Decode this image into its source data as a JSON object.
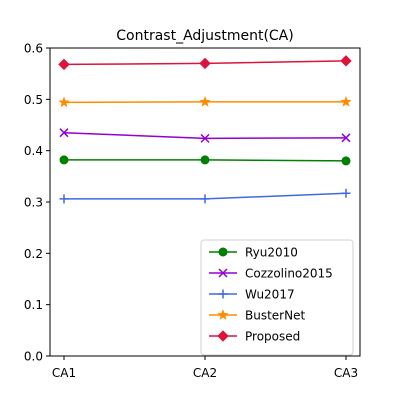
{
  "chart_data": {
    "type": "line",
    "title": "Contrast_Adjustment(CA)",
    "xlabel": "",
    "ylabel": "",
    "categories": [
      "CA1",
      "CA2",
      "CA3"
    ],
    "ylim": [
      0,
      0.6
    ],
    "yticks": [
      "0.0",
      "0.1",
      "0.2",
      "0.3",
      "0.4",
      "0.5",
      "0.6"
    ],
    "grid": false,
    "legend_position": "lower-right",
    "series": [
      {
        "name": "Ryu2010",
        "values": [
          0.382,
          0.382,
          0.38
        ],
        "color": "#008000",
        "marker": "circle"
      },
      {
        "name": "Cozzolino2015",
        "values": [
          0.435,
          0.424,
          0.425
        ],
        "color": "#9400d3",
        "marker": "x"
      },
      {
        "name": "Wu2017",
        "values": [
          0.306,
          0.306,
          0.317
        ],
        "color": "#4169e1",
        "marker": "plus"
      },
      {
        "name": "BusterNet",
        "values": [
          0.494,
          0.495,
          0.495
        ],
        "color": "#ff8c00",
        "marker": "star"
      },
      {
        "name": "Proposed",
        "values": [
          0.568,
          0.57,
          0.575
        ],
        "color": "#dc143c",
        "marker": "diamond"
      }
    ]
  }
}
